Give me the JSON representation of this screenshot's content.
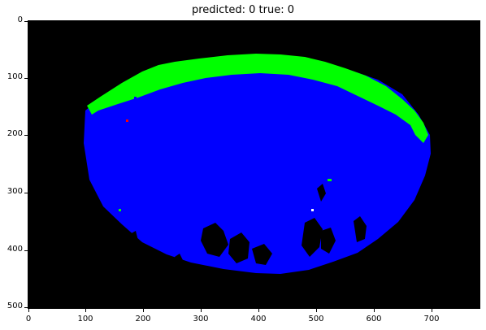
{
  "plot": {
    "title": "predicted: 0  true: 0",
    "x_ticks": [
      "0",
      "100",
      "200",
      "300",
      "400",
      "500",
      "600",
      "700"
    ],
    "y_ticks": [
      "0",
      "100",
      "200",
      "300",
      "400",
      "500"
    ],
    "colors": {
      "background": "#000000",
      "region_main": "#0000ff",
      "region_edge": "#00ff00",
      "marker_red": "#ff0000",
      "marker_white": "#ffffff"
    }
  }
}
